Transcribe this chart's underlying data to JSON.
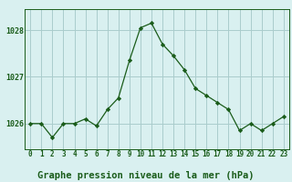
{
  "x": [
    0,
    1,
    2,
    3,
    4,
    5,
    6,
    7,
    8,
    9,
    10,
    11,
    12,
    13,
    14,
    15,
    16,
    17,
    18,
    19,
    20,
    21,
    22,
    23
  ],
  "y": [
    1026.0,
    1026.0,
    1025.7,
    1026.0,
    1026.0,
    1026.1,
    1025.95,
    1026.3,
    1026.55,
    1027.35,
    1028.05,
    1028.15,
    1027.7,
    1027.45,
    1027.15,
    1026.75,
    1026.6,
    1026.45,
    1026.3,
    1025.85,
    1026.0,
    1025.85,
    1026.0,
    1026.15
  ],
  "line_color": "#1a5c1a",
  "marker_color": "#1a5c1a",
  "bg_color": "#d9f0f0",
  "grid_color": "#aacccc",
  "title": "Graphe pression niveau de la mer (hPa)",
  "ylim_min": 1025.45,
  "ylim_max": 1028.45,
  "yticks": [
    1026,
    1027,
    1028
  ],
  "title_color": "#1a5c1a",
  "title_fontsize": 7.5,
  "axis_color": "#1a5c1a",
  "tick_fontsize": 5.5
}
